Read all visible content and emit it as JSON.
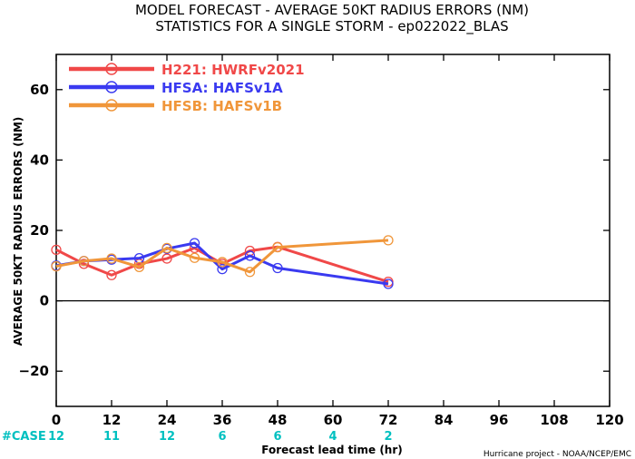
{
  "title_line1": "MODEL FORECAST - AVERAGE 50KT RADIUS ERRORS (NM)",
  "title_line2": "STATISTICS FOR A SINGLE STORM - ep022022_BLAS",
  "credit": "Hurricane project - NOAA/NCEP/EMC",
  "case_label": "#CASE",
  "case_color": "#00c0c0",
  "chart_data": {
    "type": "line",
    "xlabel": "Forecast lead time (hr)",
    "ylabel": "AVERAGE 50KT RADIUS ERRORS (NM)",
    "xlim": [
      0,
      120
    ],
    "ylim": [
      -30,
      70
    ],
    "xticks": [
      0,
      12,
      24,
      36,
      48,
      60,
      72,
      84,
      96,
      108,
      120
    ],
    "xtick_labels": [
      "0",
      "12",
      "24",
      "36",
      "48",
      "60",
      "72",
      "84",
      "96",
      "108",
      "120"
    ],
    "yticks": [
      -20,
      0,
      20,
      40,
      60
    ],
    "ytick_labels": [
      "−20",
      "0",
      "20",
      "40",
      "60"
    ],
    "zero_line": true,
    "grid": false,
    "legend_position": "top-left",
    "series": [
      {
        "name": "H221: HWRFv2021",
        "color": "#f04848",
        "x": [
          0,
          6,
          12,
          18,
          24,
          30,
          36,
          42,
          48,
          72
        ],
        "y": [
          14.5,
          10.5,
          7.3,
          10.5,
          12,
          15,
          10.5,
          14.2,
          15.3,
          5.4
        ]
      },
      {
        "name": "HFSA: HAFSv1A",
        "color": "#3a3af0",
        "x": [
          0,
          6,
          12,
          18,
          24,
          30,
          36,
          42,
          48,
          72
        ],
        "y": [
          10,
          11.3,
          11.7,
          12.1,
          14.8,
          16.4,
          9,
          12.8,
          9.3,
          4.8
        ]
      },
      {
        "name": "HFSB: HAFSv1B",
        "color": "#f0963a",
        "x": [
          0,
          6,
          12,
          18,
          24,
          30,
          36,
          42,
          48,
          72
        ],
        "y": [
          9.8,
          11.3,
          12,
          9.6,
          15,
          12.2,
          11,
          8.2,
          15.2,
          17.2
        ]
      }
    ],
    "case_counts": [
      {
        "x": 0,
        "label": "12"
      },
      {
        "x": 12,
        "label": "11"
      },
      {
        "x": 24,
        "label": "12"
      },
      {
        "x": 36,
        "label": "6"
      },
      {
        "x": 48,
        "label": "6"
      },
      {
        "x": 60,
        "label": "4"
      },
      {
        "x": 72,
        "label": "2"
      }
    ]
  }
}
